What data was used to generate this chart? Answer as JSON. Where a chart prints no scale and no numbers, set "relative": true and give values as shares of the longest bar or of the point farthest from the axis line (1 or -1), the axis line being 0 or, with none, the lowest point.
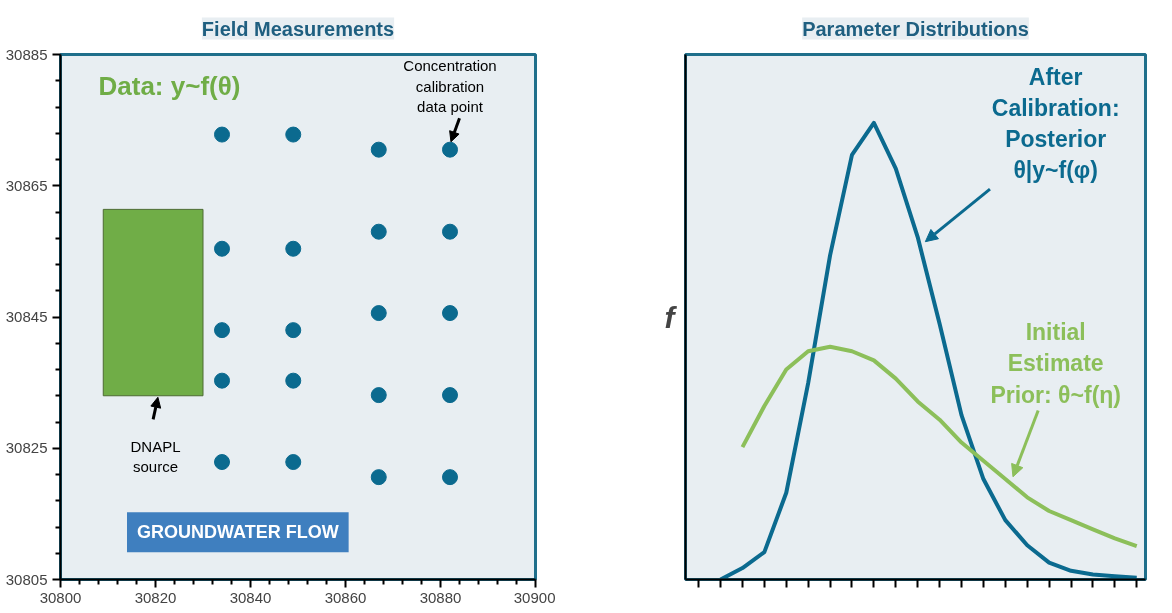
{
  "chart_data": [
    {
      "type": "scatter",
      "title": "Field Measurements",
      "grid": false,
      "xlim": [
        30800,
        30900
      ],
      "ylim": [
        30805,
        30885
      ],
      "xticks": [
        30800,
        30820,
        30840,
        30860,
        30880,
        30900
      ],
      "yticks": [
        30805,
        30825,
        30845,
        30865,
        30885
      ],
      "series": [
        {
          "type": "scatter",
          "marker": "circle",
          "color": "#0b6a8f",
          "x": [
            30834,
            30834,
            30834,
            30834,
            30834,
            30849,
            30849,
            30849,
            30849,
            30849,
            30867,
            30867,
            30867,
            30867,
            30867,
            30882,
            30882,
            30882,
            30882,
            30882
          ],
          "values": [
            30872.8,
            30855.4,
            30843,
            30835.3,
            30822.9,
            30872.8,
            30855.4,
            30843,
            30835.3,
            30822.9,
            30870.5,
            30858,
            30845.6,
            30833.1,
            30820.6,
            30870.5,
            30858,
            30845.6,
            30833.1,
            30820.6
          ]
        },
        {
          "type": "bar",
          "color": "#70ad47",
          "x": [
            30819.5
          ],
          "values": [
            28.4
          ],
          "base": [
            30833
          ]
        }
      ],
      "annotations": [
        "Data: y~f(θ)",
        {
          "text": "Concentration\ncalibration\ndata point",
          "x": 30882,
          "y": 30870.5
        },
        {
          "text": "DNAPL\nsource",
          "x": 30820,
          "y": 30833
        },
        "GROUNDWATER FLOW"
      ]
    },
    {
      "type": "line",
      "title": "Parameter Distributions",
      "ylabel": "f",
      "relative": true,
      "grid": false,
      "categories": [
        null,
        null,
        null,
        null,
        null,
        null,
        null,
        null,
        null,
        null,
        null,
        null,
        null,
        null,
        null,
        null,
        null,
        null,
        null,
        null,
        null
      ],
      "series": [
        {
          "name": "After\nCalibration:\nPosterior\nθ|y~f(φ)",
          "color": "#0b6a8f",
          "values": [
            null,
            0.0,
            0.025,
            0.06,
            0.19,
            0.43,
            0.71,
            0.93,
            1.0,
            0.9,
            0.75,
            0.56,
            0.36,
            0.22,
            0.13,
            0.075,
            0.037,
            0.019,
            0.011,
            0.007,
            0.004
          ]
        },
        {
          "name": "Initial\nEstimate\nPrior: θ~f(η)",
          "color": "#8cbf5a",
          "values": [
            null,
            null,
            0.29,
            0.38,
            0.46,
            0.5,
            0.51,
            0.5,
            0.48,
            0.44,
            0.39,
            0.35,
            0.3,
            0.26,
            0.22,
            0.18,
            0.15,
            0.13,
            0.11,
            0.09,
            0.073
          ]
        }
      ]
    }
  ]
}
